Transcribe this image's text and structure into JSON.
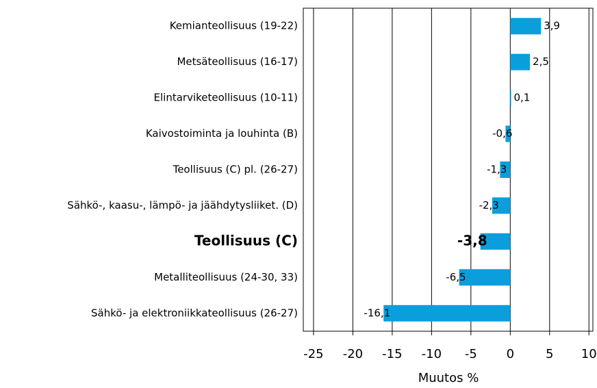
{
  "chart_data": {
    "type": "barh",
    "xlabel": "Muutos %",
    "categories": [
      "Kemianteollisuus (19-22)",
      "Metsäteollisuus (16-17)",
      "Elintarviketeollisuus (10-11)",
      "Kaivostoiminta  ja louhinta (B)",
      "Teollisuus (C) pl. (26-27)",
      "Sähkö-, kaasu-, lämpö- ja jäähdytysliiket. (D)",
      "Teollisuus (C)",
      "Metalliteollisuus (24-30, 33)",
      "Sähkö- ja elektroniikkateollisuus (26-27)"
    ],
    "values": [
      3.9,
      2.5,
      0.1,
      -0.6,
      -1.3,
      -2.3,
      -3.8,
      -6.5,
      -16.1
    ],
    "value_labels": [
      "3,9",
      "2,5",
      "0,1",
      "-0,6",
      "-1,3",
      "-2,3",
      "-3,8",
      "-6,5",
      "-16,1"
    ],
    "highlight": 6,
    "color": "#0a9fdc",
    "xlim": [
      -26.3,
      10.5
    ],
    "xticks": [
      -25,
      -20,
      -15,
      -10,
      -5,
      0,
      5,
      10
    ],
    "grid": true
  }
}
